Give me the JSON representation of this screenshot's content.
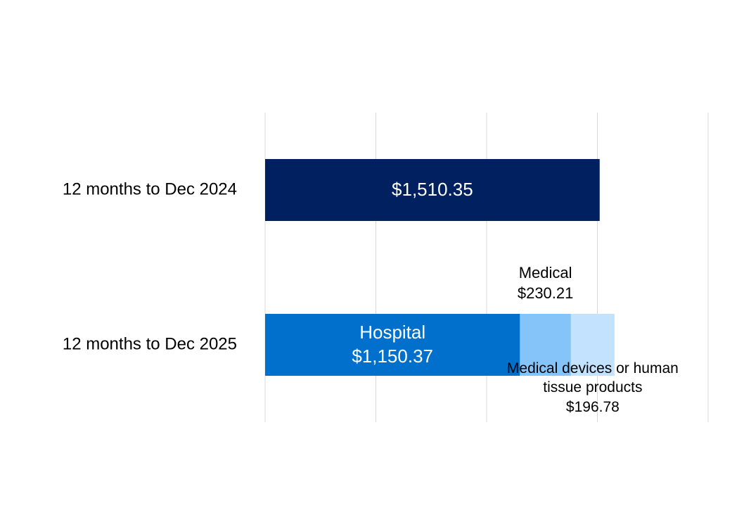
{
  "chart_data": {
    "type": "stacked-barh",
    "categories": [
      "12 months to Dec 2024",
      "12 months to Dec 2025"
    ],
    "series": [
      {
        "color": "#002060",
        "values": [
          1510.35,
          null
        ],
        "value_labels": [
          "$1,510.35",
          null
        ]
      },
      {
        "name": "Hospital",
        "color": "#0070cc",
        "values": [
          null,
          1150.37
        ],
        "value_labels": [
          null,
          "$1,150.37"
        ]
      },
      {
        "name": "Medical",
        "color": "#85c4f8",
        "values": [
          null,
          230.21
        ],
        "value_labels": [
          null,
          "$230.21"
        ]
      },
      {
        "name": "Medical devices or human tissue products",
        "color": "#c2e2fd",
        "values": [
          null,
          196.78
        ],
        "value_labels": [
          null,
          "$196.78"
        ]
      }
    ],
    "xlim": [
      0,
      2000
    ],
    "xticks": [
      0,
      500,
      1000,
      1500,
      2000
    ],
    "grid": true
  }
}
